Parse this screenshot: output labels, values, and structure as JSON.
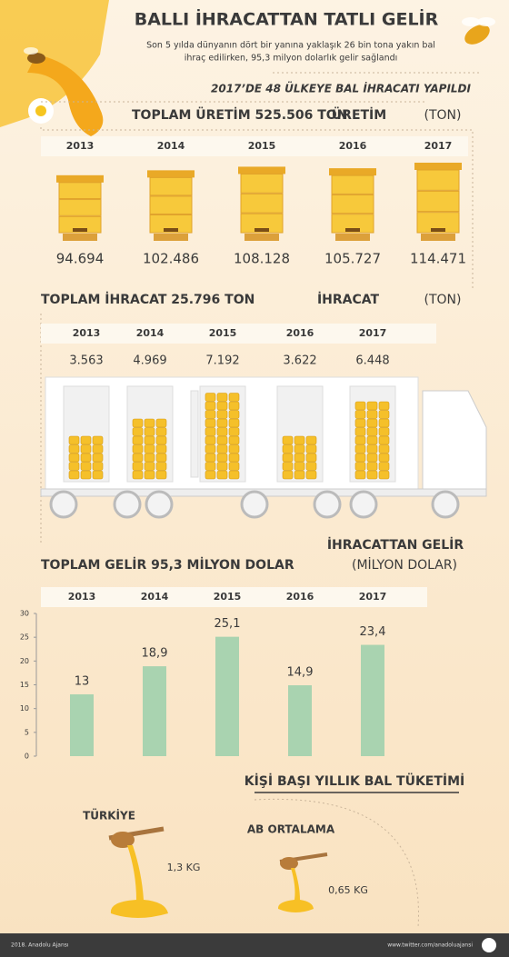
{
  "header": {
    "title": "BALLI İHRACATTAN TATLI GELİR",
    "subtitle": [
      "Son 5 yılda dünyanın dört bir yanına yaklaşık 26 bin tona yakın bal",
      "ihraç edilirken, 95,3 milyon dolarlık gelir sağlandı"
    ],
    "highlight": "2017’DE 48 ÜLKEYE BAL İHRACATI YAPILDI"
  },
  "chart_data": [
    {
      "type": "pictogram",
      "icon": "hive",
      "title": "TOPLAM ÜRETİM 525.506 TON",
      "label": "ÜRETİM",
      "unit": "(TON)",
      "categories": [
        "2013",
        "2014",
        "2015",
        "2016",
        "2017"
      ],
      "values": [
        94694,
        102486,
        108128,
        105727,
        114471
      ],
      "value_labels": [
        "94.694",
        "102.486",
        "108.128",
        "105.727",
        "114.471"
      ],
      "color": "#f7c93b"
    },
    {
      "type": "pictogram",
      "icon": "jar",
      "title": "TOPLAM İHRACAT 25.796 TON",
      "label": "İHRACAT",
      "unit": "(TON)",
      "categories": [
        "2013",
        "2014",
        "2015",
        "2016",
        "2017"
      ],
      "values": [
        3563,
        4969,
        7192,
        3622,
        6448
      ],
      "value_labels": [
        "3.563",
        "4.969",
        "7.192",
        "3.622",
        "6.448"
      ],
      "color": "#f5c02a"
    },
    {
      "type": "bar",
      "title": "TOPLAM GELİR 95,3 MİLYON DOLAR",
      "label": "İHRACATTAN GELİR",
      "unit": "(MİLYON DOLAR)",
      "categories": [
        "2013",
        "2014",
        "2015",
        "2016",
        "2017"
      ],
      "values": [
        13,
        18.9,
        25.1,
        14.9,
        23.4
      ],
      "value_labels": [
        "13",
        "18,9",
        "25,1",
        "14,9",
        "23,4"
      ],
      "color": "#a9d3b0",
      "ylim": [
        0,
        30
      ],
      "yticks": [
        0,
        5,
        10,
        15,
        20,
        25,
        30
      ],
      "grid": false
    }
  ],
  "consumption": {
    "title": "KİŞİ BAŞI YILLIK BAL TÜKETİMİ",
    "items": [
      {
        "name": "TÜRKİYE",
        "amount": "1,3 KG"
      },
      {
        "name": "AB ORTALAMA",
        "amount": "0,65 KG"
      }
    ]
  },
  "footer": {
    "credit": "2018. Anadolu Ajansı",
    "link": "www.twitter.com/anadoluajansi"
  }
}
